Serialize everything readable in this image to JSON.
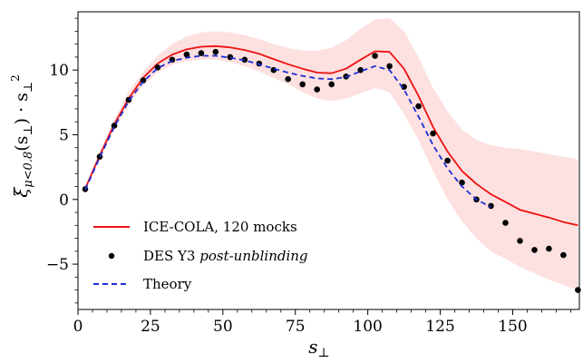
{
  "chart_data": {
    "type": "line",
    "xlabel": "s",
    "xlabel_sub": "⊥",
    "ylabel": "ξ",
    "ylabel_sub": "μ<0.8",
    "ylabel_arg": "(s",
    "ylabel_arg_sub": "⊥",
    "ylabel_tail": ") · s",
    "ylabel_tail_sub": "⊥",
    "ylabel_tail_sup": "2",
    "xlim": [
      0,
      173
    ],
    "ylim": [
      -8.5,
      14.5
    ],
    "xticks": [
      0,
      25,
      50,
      75,
      100,
      125,
      150
    ],
    "yticks": [
      -5,
      0,
      5,
      10
    ],
    "x_minor_step": 5,
    "y_minor_step": 1,
    "grid": false,
    "legend_position": "lower-left",
    "band": {
      "x": [
        2.5,
        7.5,
        12.5,
        17.5,
        22.5,
        27.5,
        32.5,
        37.5,
        42.5,
        47.5,
        52.5,
        57.5,
        62.5,
        67.5,
        72.5,
        77.5,
        82.5,
        87.5,
        92.5,
        97.5,
        102.5,
        107.5,
        112.5,
        117.5,
        122.5,
        127.5,
        132.5,
        137.5,
        142.5,
        147.5,
        152.5,
        157.5,
        162.5,
        167.5,
        172.5
      ],
      "lower": [
        0.7,
        3.1,
        5.4,
        7.3,
        8.8,
        9.8,
        10.4,
        10.7,
        10.8,
        10.8,
        10.6,
        10.3,
        9.9,
        9.4,
        8.9,
        8.3,
        7.8,
        7.6,
        7.8,
        8.2,
        8.6,
        8.3,
        6.6,
        4.6,
        2.2,
        0.0,
        -1.7,
        -3.0,
        -4.0,
        -4.6,
        -5.2,
        -5.7,
        -6.2,
        -6.6,
        -7.0
      ],
      "upper": [
        1.0,
        3.7,
        6.2,
        8.3,
        9.9,
        11.1,
        12.0,
        12.6,
        12.9,
        13.0,
        12.9,
        12.7,
        12.4,
        12.0,
        11.7,
        11.5,
        11.5,
        11.7,
        12.3,
        13.2,
        13.9,
        14.0,
        13.0,
        11.0,
        8.6,
        6.8,
        5.4,
        4.6,
        4.2,
        4.0,
        3.9,
        3.7,
        3.5,
        3.3,
        3.1
      ],
      "color": "#fde0e0"
    },
    "series": [
      {
        "name": "ICE-COLA, 120 mocks",
        "style": "solid",
        "color": "#ee1111",
        "x": [
          2.5,
          7.5,
          12.5,
          17.5,
          22.5,
          27.5,
          32.5,
          37.5,
          42.5,
          47.5,
          52.5,
          57.5,
          62.5,
          67.5,
          72.5,
          77.5,
          82.5,
          87.5,
          92.5,
          97.5,
          102.5,
          107.5,
          112.5,
          117.5,
          122.5,
          127.5,
          132.5,
          137.5,
          142.5,
          147.5,
          152.5,
          157.5,
          162.5,
          167.5,
          172.5
        ],
        "y": [
          0.85,
          3.4,
          5.8,
          7.8,
          9.4,
          10.5,
          11.2,
          11.6,
          11.8,
          11.85,
          11.75,
          11.55,
          11.25,
          10.85,
          10.45,
          10.1,
          9.8,
          9.75,
          10.1,
          10.8,
          11.45,
          11.4,
          10.1,
          8.0,
          5.6,
          3.7,
          2.2,
          1.2,
          0.4,
          -0.2,
          -0.8,
          -1.1,
          -1.4,
          -1.75,
          -2.0
        ]
      },
      {
        "name": "DES Y3",
        "name_italic": "post-unblinding",
        "style": "points",
        "color": "#000000",
        "x": [
          2.5,
          7.5,
          12.5,
          17.5,
          22.5,
          27.5,
          32.5,
          37.5,
          42.5,
          47.5,
          52.5,
          57.5,
          62.5,
          67.5,
          72.5,
          77.5,
          82.5,
          87.5,
          92.5,
          97.5,
          102.5,
          107.5,
          112.5,
          117.5,
          122.5,
          127.5,
          132.5,
          137.5,
          142.5,
          147.5,
          152.5,
          157.5,
          162.5,
          167.5,
          172.5
        ],
        "y": [
          0.8,
          3.3,
          5.7,
          7.7,
          9.2,
          10.2,
          10.8,
          11.2,
          11.3,
          11.4,
          11.0,
          10.8,
          10.5,
          10.0,
          9.3,
          8.9,
          8.5,
          8.9,
          9.5,
          10.0,
          11.1,
          10.3,
          8.7,
          7.2,
          5.1,
          3.0,
          1.3,
          0.0,
          -0.5,
          -1.8,
          -3.2,
          -3.9,
          -3.8,
          -4.3,
          -7.0
        ]
      },
      {
        "name": "Theory",
        "style": "dashed",
        "color": "#1c2fd6",
        "x": [
          2.5,
          7.5,
          12.5,
          17.5,
          22.5,
          27.5,
          32.5,
          37.5,
          42.5,
          47.5,
          52.5,
          57.5,
          62.5,
          67.5,
          72.5,
          77.5,
          82.5,
          87.5,
          92.5,
          97.5,
          102.5,
          107.5,
          112.5,
          117.5,
          122.5,
          127.5,
          132.5,
          137.5,
          142.5
        ],
        "y": [
          0.75,
          3.25,
          5.6,
          7.6,
          9.1,
          10.15,
          10.7,
          10.95,
          11.1,
          11.1,
          10.95,
          10.75,
          10.45,
          10.1,
          9.8,
          9.55,
          9.35,
          9.3,
          9.45,
          9.9,
          10.3,
          10.0,
          8.5,
          6.4,
          4.2,
          2.4,
          1.0,
          0.0,
          -0.6
        ]
      }
    ]
  }
}
